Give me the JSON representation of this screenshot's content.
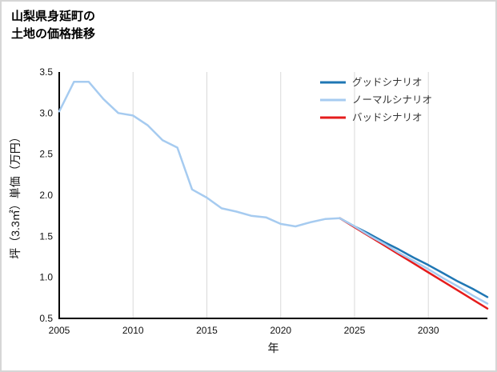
{
  "page": {
    "title_line1": "山梨県身延町の",
    "title_line2": "土地の価格推移"
  },
  "chart_data": {
    "type": "line",
    "title": "山梨県身延町の土地の価格推移",
    "xlabel": "年",
    "ylabel": "坪（3.3㎡）単価（万円）",
    "xlim": [
      2005,
      2034
    ],
    "ylim": [
      0.5,
      3.5
    ],
    "xticks": [
      2005,
      2010,
      2015,
      2020,
      2025,
      2030
    ],
    "yticks": [
      0.5,
      1.0,
      1.5,
      2.0,
      2.5,
      3.0,
      3.5
    ],
    "grid": "vertical-only",
    "grid_color": "#d9d9d9",
    "axis_color": "#000000",
    "legend_position": "top-right-inside",
    "draw_order": [
      0,
      2,
      1
    ],
    "series": [
      {
        "name": "グッドシナリオ",
        "color": "#1f77b4",
        "x": [
          2024,
          2025,
          2026,
          2027,
          2028,
          2029,
          2030,
          2031,
          2032,
          2033,
          2034
        ],
        "values": [
          1.72,
          1.62,
          1.53,
          1.43,
          1.34,
          1.24,
          1.15,
          1.05,
          0.95,
          0.86,
          0.76
        ]
      },
      {
        "name": "ノーマルシナリオ",
        "color": "#a6cbf0",
        "x": [
          2005,
          2006,
          2007,
          2008,
          2009,
          2010,
          2011,
          2012,
          2013,
          2014,
          2015,
          2016,
          2017,
          2018,
          2019,
          2020,
          2021,
          2022,
          2023,
          2024,
          2025,
          2026,
          2027,
          2028,
          2029,
          2030,
          2031,
          2032,
          2033,
          2034
        ],
        "values": [
          3.02,
          3.38,
          3.38,
          3.17,
          3.0,
          2.97,
          2.85,
          2.67,
          2.58,
          2.07,
          1.97,
          1.84,
          1.8,
          1.75,
          1.73,
          1.65,
          1.62,
          1.67,
          1.71,
          1.72,
          1.62,
          1.51,
          1.41,
          1.3,
          1.2,
          1.1,
          0.99,
          0.89,
          0.78,
          0.68
        ]
      },
      {
        "name": "バッドシナリオ",
        "color": "#e51c1c",
        "x": [
          2024,
          2025,
          2026,
          2027,
          2028,
          2029,
          2030,
          2031,
          2032,
          2033,
          2034
        ],
        "values": [
          1.72,
          1.61,
          1.5,
          1.39,
          1.28,
          1.17,
          1.06,
          0.95,
          0.84,
          0.73,
          0.62
        ]
      }
    ]
  }
}
